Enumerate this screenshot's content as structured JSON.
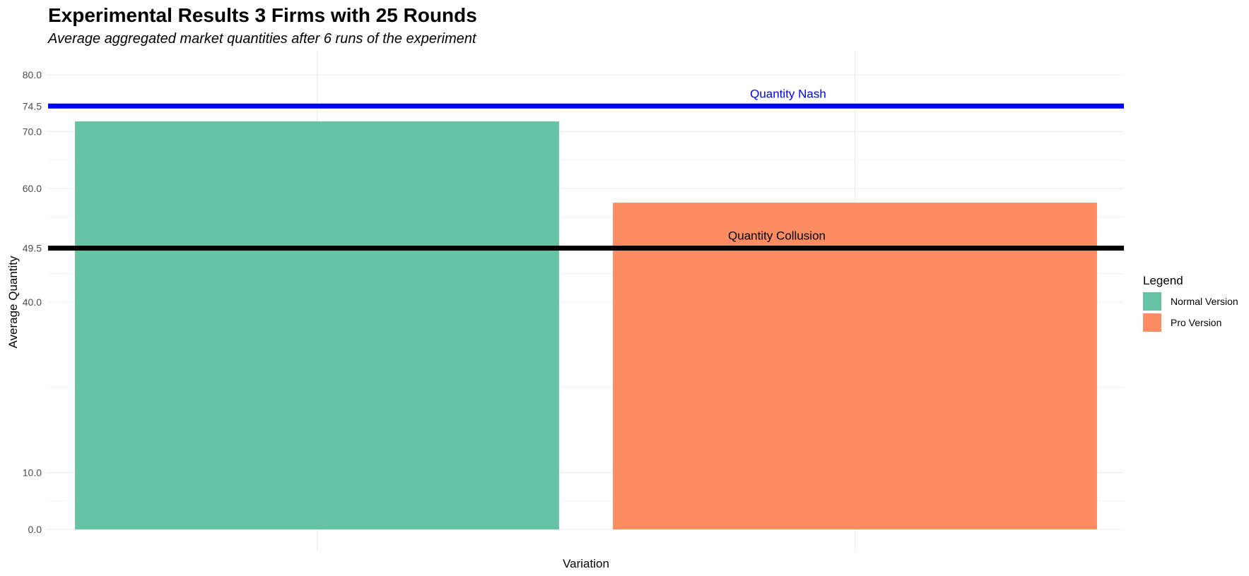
{
  "chart_data": {
    "type": "bar",
    "title": "Experimental Results 3 Firms with 25 Rounds",
    "subtitle": "Average aggregated market quantities after 6 runs of the experiment",
    "xlabel": "Variation",
    "ylabel": "Average Quantity",
    "ylim": [
      0,
      84
    ],
    "yticks": [
      {
        "value": 0,
        "label": "0.0"
      },
      {
        "value": 10,
        "label": "10.0"
      },
      {
        "value": 40,
        "label": "40.0"
      },
      {
        "value": 49.5,
        "label": "49.5"
      },
      {
        "value": 60,
        "label": "60.0"
      },
      {
        "value": 70,
        "label": "70.0"
      },
      {
        "value": 74.5,
        "label": "74.5"
      },
      {
        "value": 80,
        "label": "80.0"
      }
    ],
    "minor_gridlines": [
      5,
      25,
      45,
      55,
      65,
      75
    ],
    "grid": true,
    "categories": [
      "Normal Version",
      "Pro Version"
    ],
    "values": [
      71.8,
      57.5
    ],
    "colors": [
      "#66c2a5",
      "#fc8d62"
    ],
    "reference_lines": [
      {
        "label": "Quantity Nash",
        "value": 74.5,
        "color": "#0000ff"
      },
      {
        "label": "Quantity Collusion",
        "value": 49.5,
        "color": "#000000"
      }
    ],
    "legend": {
      "title": "Legend",
      "position": "right",
      "entries": [
        {
          "label": "Normal Version",
          "color": "#66c2a5"
        },
        {
          "label": "Pro Version",
          "color": "#fc8d62"
        }
      ]
    }
  }
}
